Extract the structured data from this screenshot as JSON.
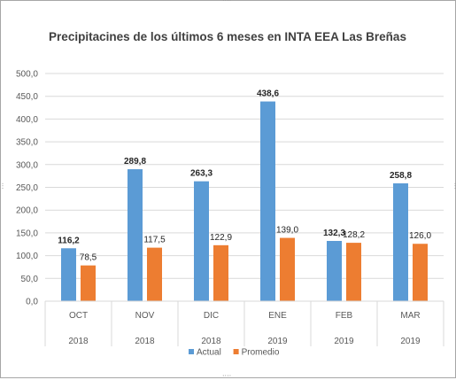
{
  "chart_data": {
    "type": "bar",
    "title": "Precipitacines de los últimos 6 meses en INTA EEA Las Breñas",
    "xlabel": "",
    "ylabel": "",
    "ylim": [
      0,
      500
    ],
    "y_ticks": [
      "0,0",
      "50,0",
      "100,0",
      "150,0",
      "200,0",
      "250,0",
      "300,0",
      "350,0",
      "400,0",
      "450,0",
      "500,0"
    ],
    "grid": true,
    "legend_position": "bottom",
    "categories": [
      "OCT",
      "NOV",
      "DIC",
      "ENE",
      "FEB",
      "MAR"
    ],
    "years": [
      "2018",
      "2018",
      "2018",
      "2019",
      "2019",
      "2019"
    ],
    "series": [
      {
        "name": "Actual",
        "color": "#5b9bd5",
        "values": [
          116.2,
          289.8,
          263.3,
          438.6,
          132.3,
          258.8
        ],
        "labels": [
          "116,2",
          "289,8",
          "263,3",
          "438,6",
          "132,3",
          "258,8"
        ],
        "labels_bold": true
      },
      {
        "name": "Promedio",
        "color": "#ed7d31",
        "values": [
          78.5,
          117.5,
          122.9,
          139.0,
          128.2,
          126.0
        ],
        "labels": [
          "78,5",
          "117,5",
          "122,9",
          "139,0",
          "128,2",
          "126,0"
        ],
        "labels_bold": false
      }
    ]
  }
}
